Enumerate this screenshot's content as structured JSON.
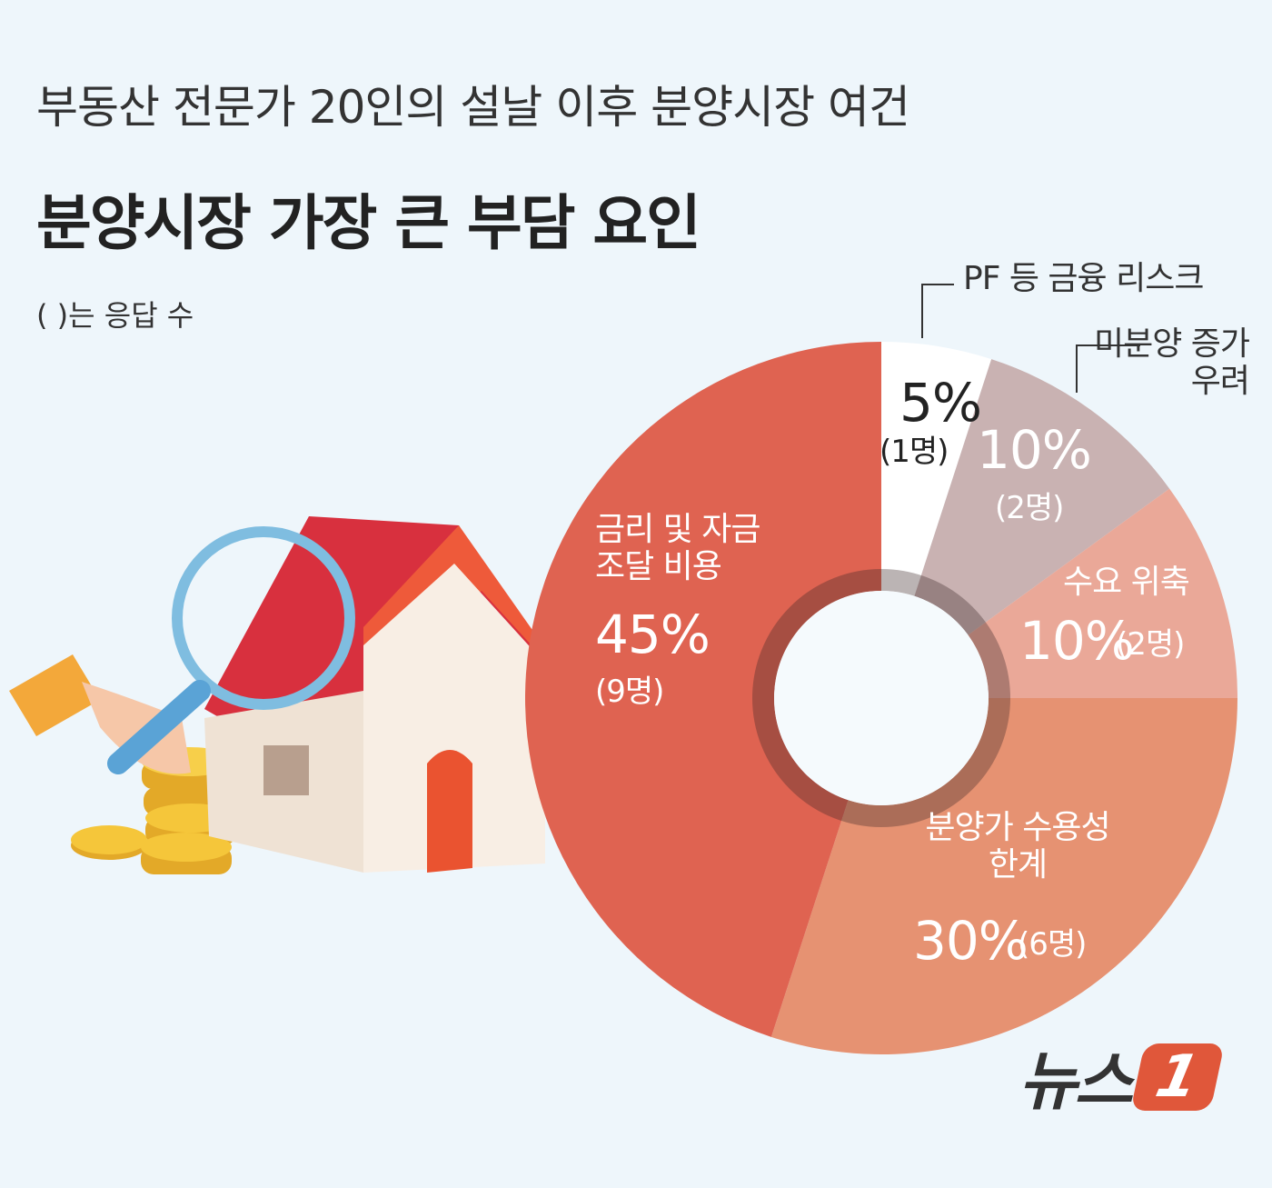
{
  "chart_data": {
    "type": "donut",
    "subtitle": "부동산 전문가 20인의 설날 이후 분양시장 여건",
    "title": "분양시장 가장 큰 부담 요인",
    "note": "( )는 응답 수",
    "categories": [
      "PF 등 금융 리스크",
      "미분양 증가 우려",
      "수요 위축",
      "분양가 수용성 한계",
      "금리 및 자금 조달 비용"
    ],
    "values": [
      5,
      10,
      10,
      30,
      45
    ],
    "value_labels": [
      "5%",
      "10%",
      "10%",
      "30%",
      "45%"
    ],
    "count_labels": [
      "(1명)",
      "(2명)",
      "(2명)",
      "(6명)",
      "(9명)"
    ],
    "colors": [
      "#ffffff",
      "#c9b2b2",
      "#eaa898",
      "#e69272",
      "#df6351"
    ],
    "source_logo": {
      "text": "뉴스",
      "mark": "1"
    }
  }
}
